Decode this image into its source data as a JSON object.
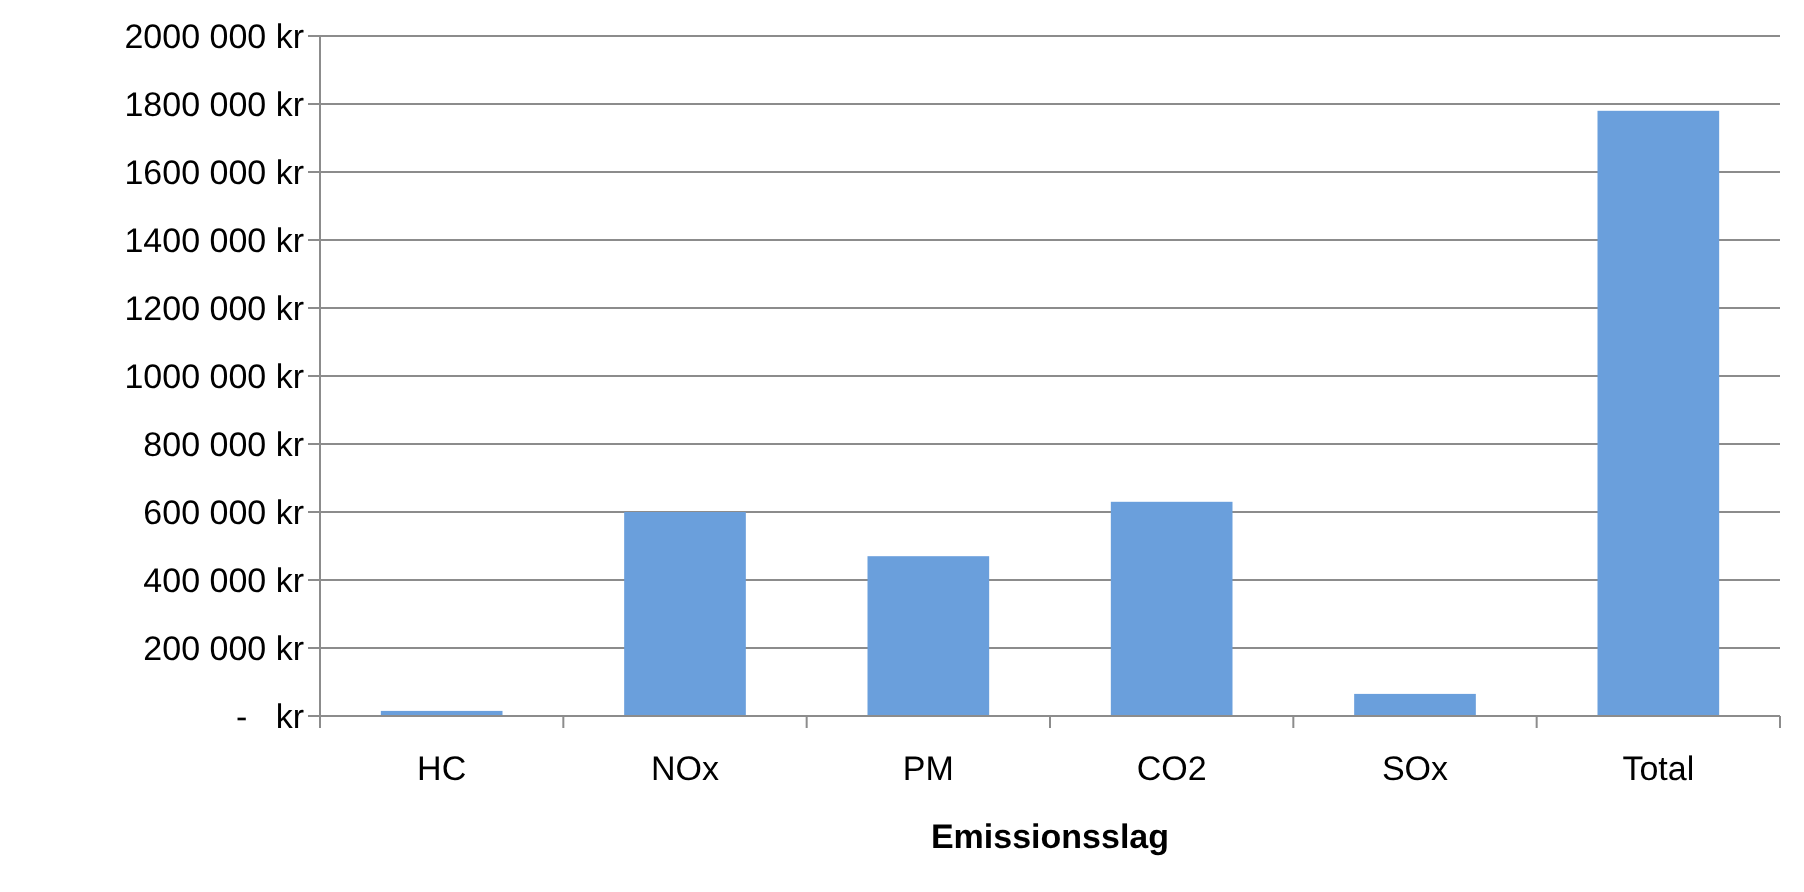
{
  "chart_data": {
    "type": "bar",
    "xlabel": "Emissionsslag",
    "categories": [
      "HC",
      "NOx",
      "PM",
      "CO2",
      "SOx",
      "Total"
    ],
    "values": [
      15000,
      600000,
      470000,
      630000,
      65000,
      1780000
    ],
    "color": "#6a9fdc",
    "ylim": [
      0,
      2000000
    ],
    "yticks": [
      {
        "value": 0,
        "label": "-   kr"
      },
      {
        "value": 200000,
        "label": "200 000 kr"
      },
      {
        "value": 400000,
        "label": "400 000 kr"
      },
      {
        "value": 600000,
        "label": "600 000 kr"
      },
      {
        "value": 800000,
        "label": "800 000 kr"
      },
      {
        "value": 1000000,
        "label": "1000 000 kr"
      },
      {
        "value": 1200000,
        "label": "1200 000 kr"
      },
      {
        "value": 1400000,
        "label": "1400 000 kr"
      },
      {
        "value": 1600000,
        "label": "1600 000 kr"
      },
      {
        "value": 1800000,
        "label": "1800 000 kr"
      },
      {
        "value": 2000000,
        "label": "2000 000 kr"
      }
    ],
    "grid": "y"
  }
}
